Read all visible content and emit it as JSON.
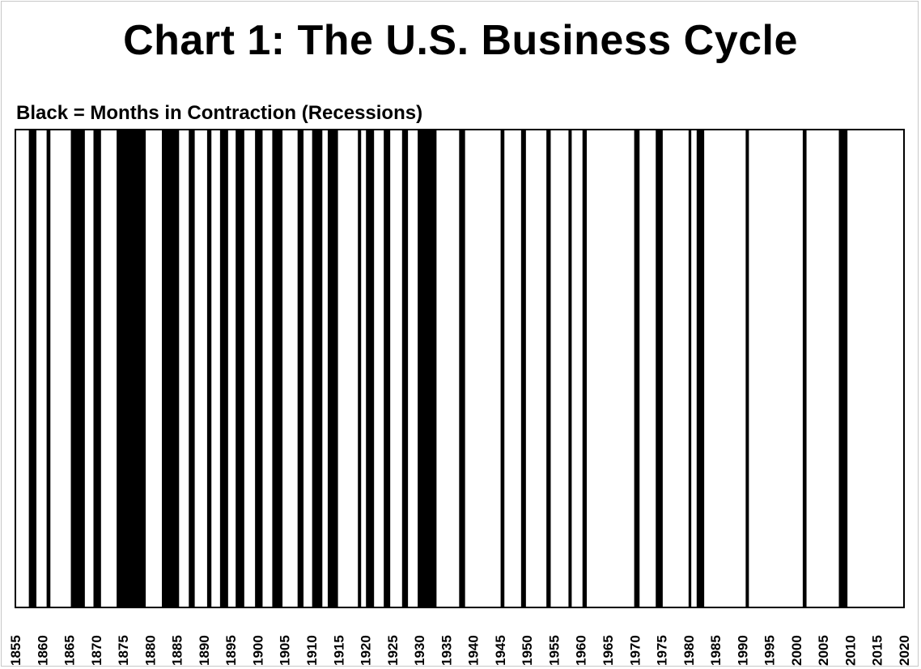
{
  "chart_data": {
    "type": "bar",
    "title": "Chart 1: The U.S. Business Cycle",
    "subtitle": "Black = Months in Contraction (Recessions)",
    "xlim": [
      1855,
      2020
    ],
    "x_ticks": [
      "1855",
      "1860",
      "1865",
      "1870",
      "1875",
      "1880",
      "1885",
      "1890",
      "1895",
      "1900",
      "1905",
      "1910",
      "1915",
      "1920",
      "1925",
      "1930",
      "1935",
      "1940",
      "1945",
      "1950",
      "1955",
      "1960",
      "1965",
      "1970",
      "1975",
      "1980",
      "1985",
      "1990",
      "1995",
      "2000",
      "2005",
      "2010",
      "2015",
      "2020"
    ],
    "grid": false,
    "contractions": [
      {
        "start": 1857.5,
        "end": 1858.9
      },
      {
        "start": 1860.8,
        "end": 1861.5
      },
      {
        "start": 1865.3,
        "end": 1867.9
      },
      {
        "start": 1869.5,
        "end": 1870.9
      },
      {
        "start": 1873.8,
        "end": 1879.2
      },
      {
        "start": 1882.2,
        "end": 1885.4
      },
      {
        "start": 1887.2,
        "end": 1888.3
      },
      {
        "start": 1890.6,
        "end": 1891.4
      },
      {
        "start": 1893.0,
        "end": 1894.5
      },
      {
        "start": 1895.9,
        "end": 1897.5
      },
      {
        "start": 1899.5,
        "end": 1900.9
      },
      {
        "start": 1902.7,
        "end": 1904.6
      },
      {
        "start": 1907.4,
        "end": 1908.5
      },
      {
        "start": 1910.1,
        "end": 1912.0
      },
      {
        "start": 1913.0,
        "end": 1914.9
      },
      {
        "start": 1918.6,
        "end": 1919.2
      },
      {
        "start": 1920.1,
        "end": 1921.6
      },
      {
        "start": 1923.4,
        "end": 1924.6
      },
      {
        "start": 1926.8,
        "end": 1927.9
      },
      {
        "start": 1929.7,
        "end": 1933.2
      },
      {
        "start": 1937.4,
        "end": 1938.5
      },
      {
        "start": 1945.1,
        "end": 1945.8
      },
      {
        "start": 1948.9,
        "end": 1949.8
      },
      {
        "start": 1953.6,
        "end": 1954.4
      },
      {
        "start": 1957.7,
        "end": 1958.3
      },
      {
        "start": 1960.3,
        "end": 1961.1
      },
      {
        "start": 1969.9,
        "end": 1970.9
      },
      {
        "start": 1973.9,
        "end": 1975.2
      },
      {
        "start": 1980.0,
        "end": 1980.5
      },
      {
        "start": 1981.5,
        "end": 1982.9
      },
      {
        "start": 1990.6,
        "end": 1991.2
      },
      {
        "start": 2001.2,
        "end": 2001.9
      },
      {
        "start": 2007.9,
        "end": 2009.5
      }
    ],
    "colors": {
      "contraction": "#000000",
      "expansion": "#ffffff",
      "frame": "#000000"
    }
  }
}
